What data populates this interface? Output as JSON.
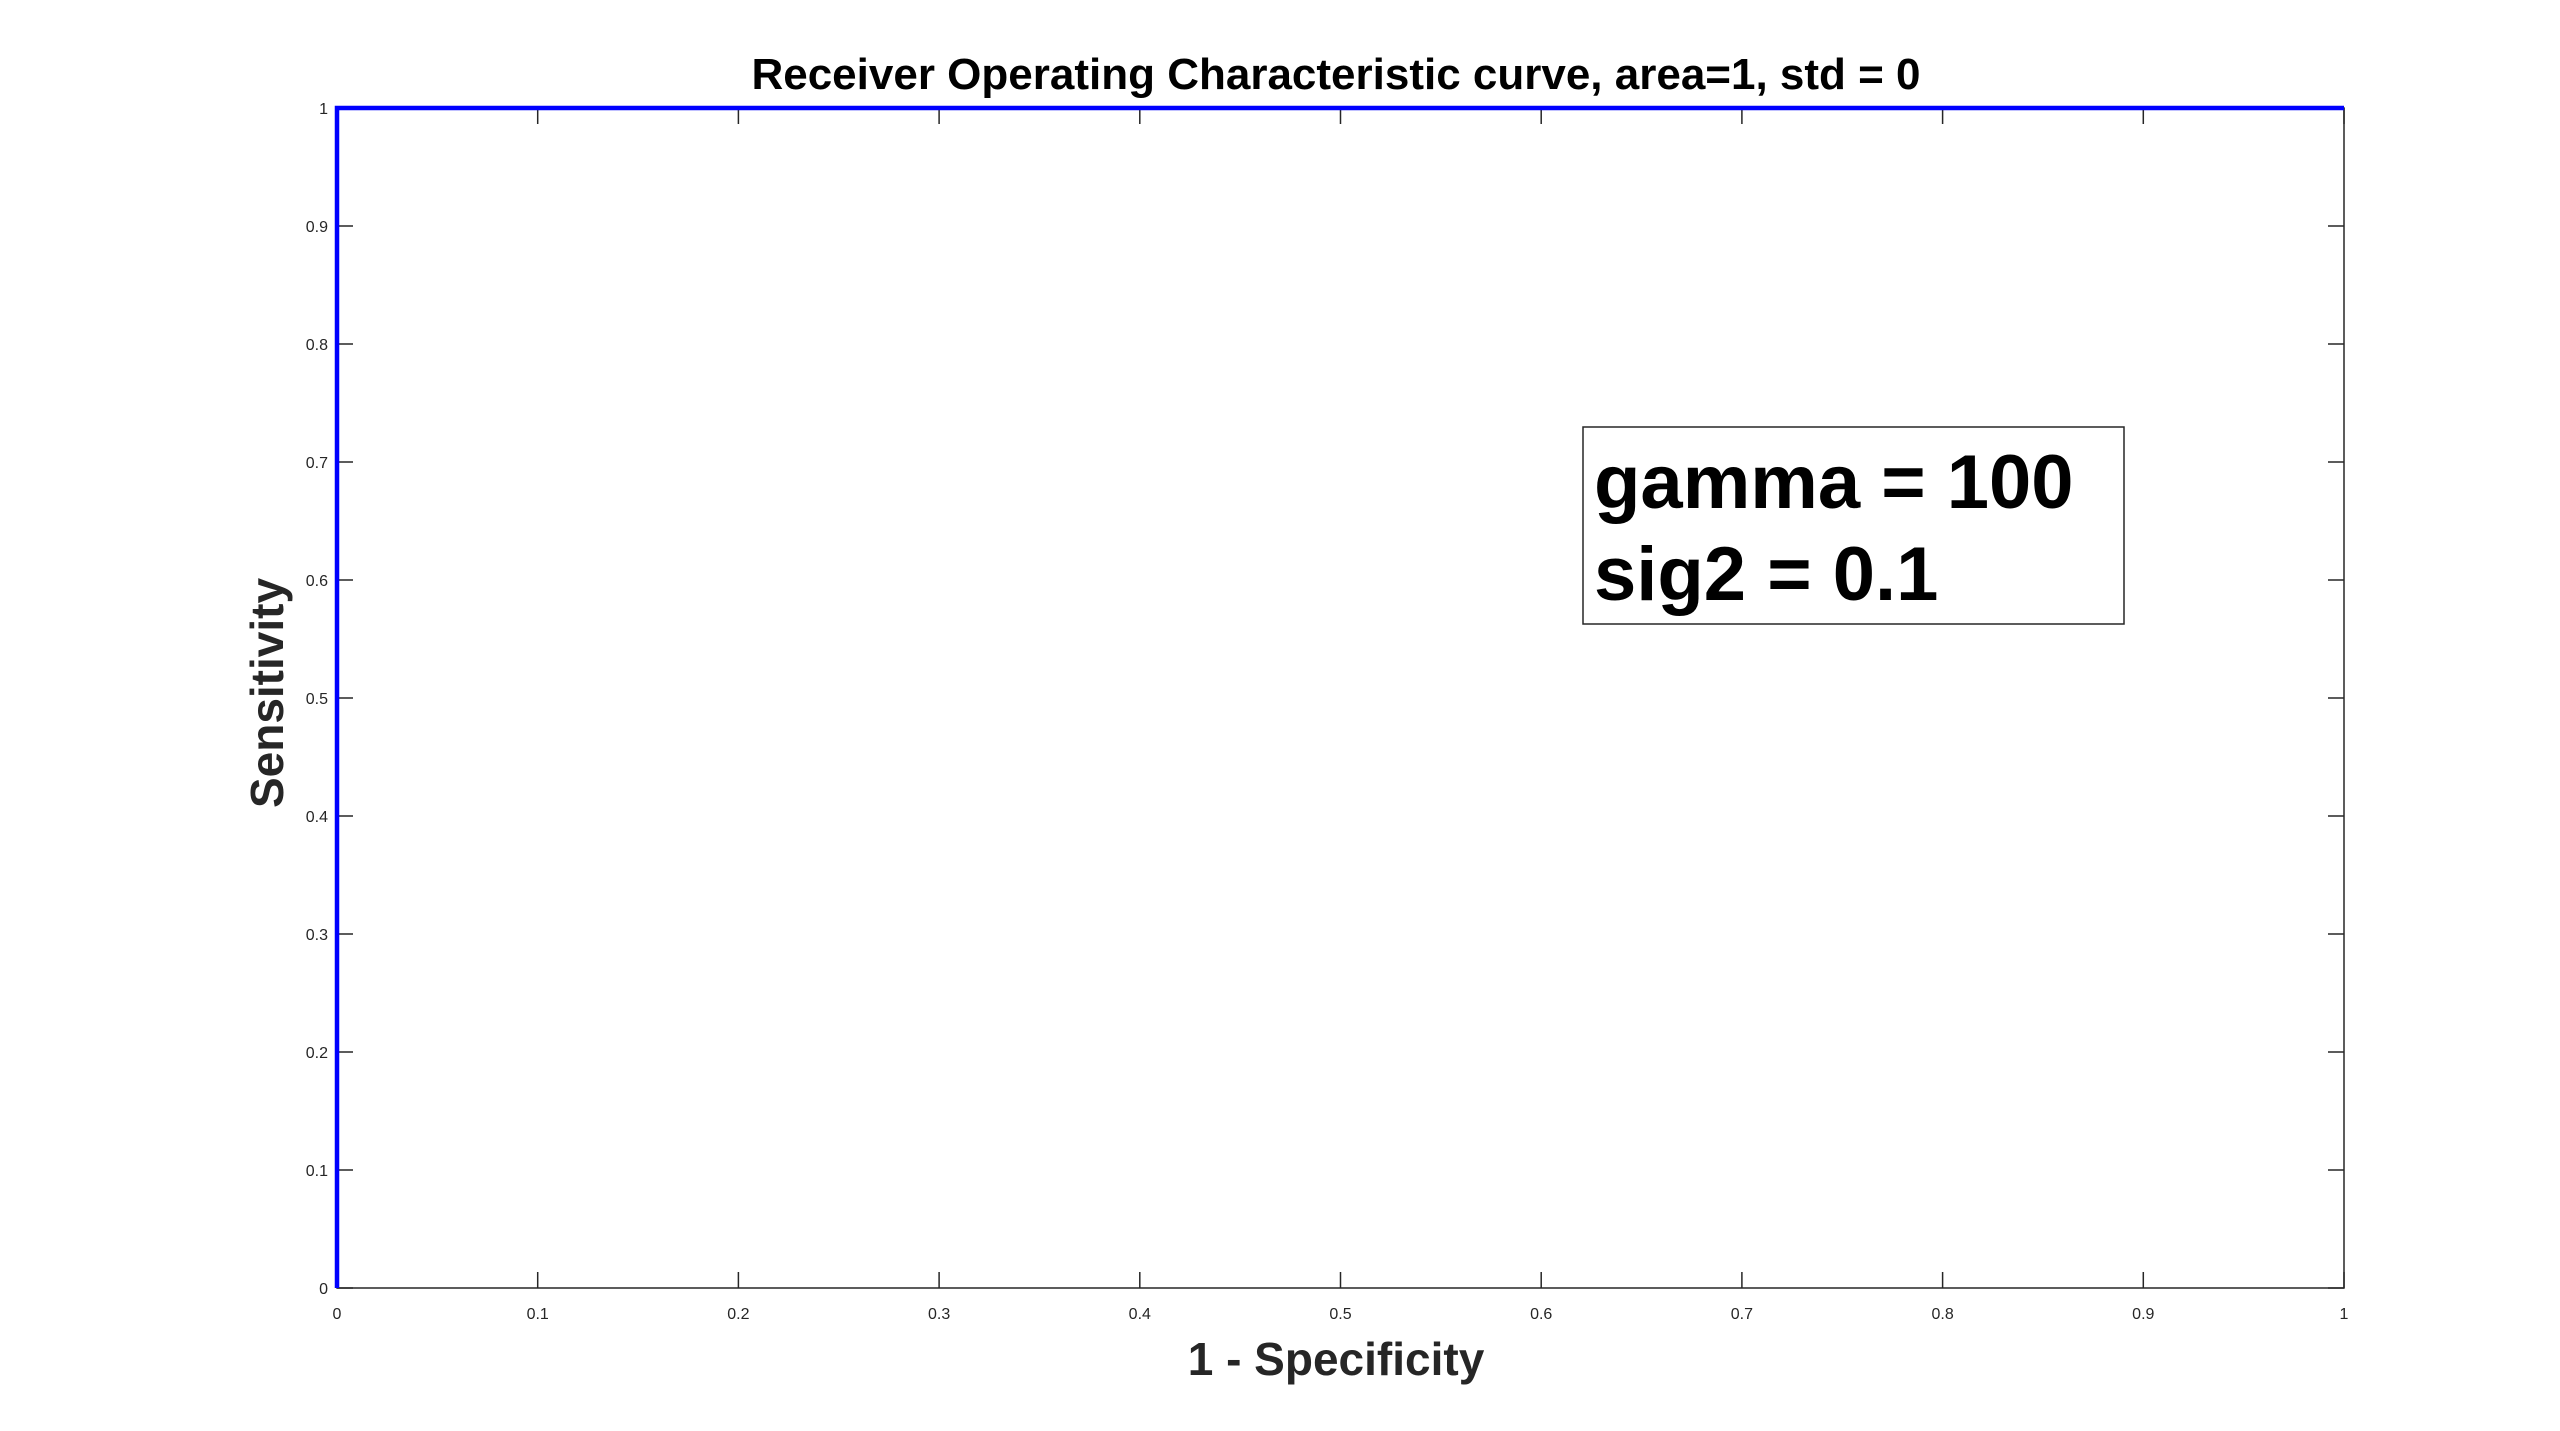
{
  "chart_data": {
    "type": "line",
    "title": "Receiver Operating Characteristic curve, area=1, std = 0",
    "xlabel": "1 - Specificity",
    "ylabel": "Sensitivity",
    "xlim": [
      0,
      1
    ],
    "ylim": [
      0,
      1
    ],
    "xticks": [
      "0",
      "0.1",
      "0.2",
      "0.3",
      "0.4",
      "0.5",
      "0.6",
      "0.7",
      "0.8",
      "0.9",
      "1"
    ],
    "yticks": [
      "0",
      "0.1",
      "0.2",
      "0.3",
      "0.4",
      "0.5",
      "0.6",
      "0.7",
      "0.8",
      "0.9",
      "1"
    ],
    "grid": false,
    "series": [
      {
        "color": "#0000ff",
        "x": [
          0,
          0,
          1
        ],
        "y": [
          0,
          1,
          1
        ]
      }
    ],
    "annotation": {
      "lines": [
        "gamma = 100",
        "sig2 = 0.1"
      ]
    }
  }
}
